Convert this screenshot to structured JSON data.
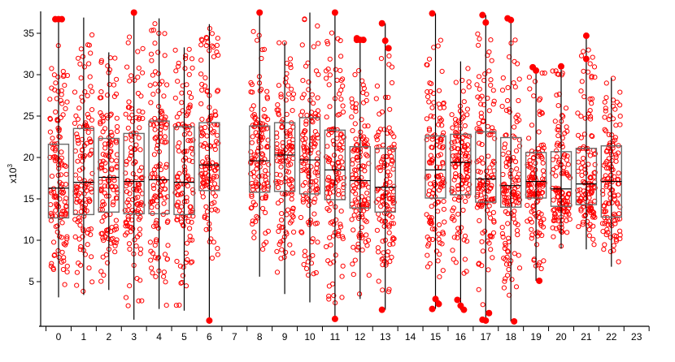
{
  "chart_data": {
    "type": "box",
    "title": "",
    "xlabel": "",
    "ylabel": "x10^3",
    "ylabel_base": "x10",
    "ylabel_exp": "3",
    "ylim": [
      0,
      37.5
    ],
    "yticks": [
      5,
      10,
      15,
      20,
      25,
      30,
      35
    ],
    "categories": [
      "0",
      "1",
      "2",
      "3",
      "4",
      "5",
      "6",
      "7",
      "8",
      "9",
      "10",
      "11",
      "12",
      "13",
      "14",
      "15",
      "16",
      "17",
      "18",
      "19",
      "20",
      "21",
      "22",
      "23"
    ],
    "grid": false,
    "legend": null,
    "point_color": "#ff0000",
    "box_color": "#6b6b6b",
    "whisker_color": "#000000",
    "boxes": [
      {
        "cat": "0",
        "whisker_low": 3.1,
        "q1": 12.7,
        "median": 16.3,
        "q3": 21.6,
        "whisker_high": 36.7,
        "outliers_high": [
          36.7,
          36.7,
          36.7
        ],
        "outliers_low": []
      },
      {
        "cat": "1",
        "whisker_low": 3.4,
        "q1": 13.1,
        "median": 17.0,
        "q3": 23.5,
        "whisker_high": 36.9,
        "outliers_high": [],
        "outliers_low": []
      },
      {
        "cat": "2",
        "whisker_low": 4.0,
        "q1": 13.4,
        "median": 17.6,
        "q3": 22.3,
        "whisker_high": 32.7,
        "outliers_high": [],
        "outliers_low": []
      },
      {
        "cat": "3",
        "whisker_low": 0.4,
        "q1": 13.2,
        "median": 17.1,
        "q3": 22.9,
        "whisker_high": 37.5,
        "outliers_high": [
          37.5
        ],
        "outliers_low": []
      },
      {
        "cat": "4",
        "whisker_low": 1.7,
        "q1": 13.2,
        "median": 17.3,
        "q3": 24.4,
        "whisker_high": 36.8,
        "outliers_high": [],
        "outliers_low": []
      },
      {
        "cat": "5",
        "whisker_low": 1.5,
        "q1": 13.1,
        "median": 17.0,
        "q3": 23.7,
        "whisker_high": 33.3,
        "outliers_high": [],
        "outliers_low": []
      },
      {
        "cat": "6",
        "whisker_low": 0.3,
        "q1": 16.0,
        "median": 19.1,
        "q3": 24.2,
        "whisker_high": 36.1,
        "outliers_high": [],
        "outliers_low": [
          0.3
        ]
      },
      {
        "cat": "7",
        "empty": true
      },
      {
        "cat": "8",
        "whisker_low": 5.6,
        "q1": 15.8,
        "median": 19.6,
        "q3": 23.8,
        "whisker_high": 37.5,
        "outliers_high": [
          37.5
        ],
        "outliers_low": []
      },
      {
        "cat": "9",
        "whisker_low": 3.5,
        "q1": 15.9,
        "median": 20.3,
        "q3": 24.2,
        "whisker_high": 33.9,
        "outliers_high": [],
        "outliers_low": []
      },
      {
        "cat": "10",
        "whisker_low": 2.5,
        "q1": 15.6,
        "median": 19.7,
        "q3": 24.8,
        "whisker_high": 37.5,
        "outliers_high": [],
        "outliers_low": []
      },
      {
        "cat": "11",
        "whisker_low": 0.5,
        "q1": 14.9,
        "median": 18.5,
        "q3": 23.3,
        "whisker_high": 37.5,
        "outliers_high": [
          37.5
        ],
        "outliers_low": [
          0.5
        ]
      },
      {
        "cat": "12",
        "whisker_low": 2.9,
        "q1": 13.9,
        "median": 17.2,
        "q3": 21.3,
        "whisker_high": 34.2,
        "outliers_high": [
          34.2,
          34.2,
          34.2,
          34.4
        ],
        "outliers_low": []
      },
      {
        "cat": "13",
        "whisker_low": 1.6,
        "q1": 13.4,
        "median": 16.4,
        "q3": 21.1,
        "whisker_high": 36.2,
        "outliers_high": [
          36.2,
          34.1,
          33.2
        ],
        "outliers_low": [
          1.6
        ]
      },
      {
        "cat": "14",
        "empty": true
      },
      {
        "cat": "15",
        "whisker_low": 1.7,
        "q1": 15.1,
        "median": 18.5,
        "q3": 22.6,
        "whisker_high": 37.4,
        "outliers_high": [
          37.4
        ],
        "outliers_low": [
          2.9,
          2.3,
          1.7
        ]
      },
      {
        "cat": "16",
        "whisker_low": 1.6,
        "q1": 15.5,
        "median": 19.4,
        "q3": 22.8,
        "whisker_high": 31.6,
        "outliers_high": [],
        "outliers_low": [
          2.8,
          2.1,
          1.6
        ]
      },
      {
        "cat": "17",
        "whisker_low": 0.3,
        "q1": 14.6,
        "median": 17.4,
        "q3": 23.1,
        "whisker_high": 37.2,
        "outliers_high": [
          37.2,
          36.3
        ],
        "outliers_low": [
          1.2,
          0.4,
          0.3
        ]
      },
      {
        "cat": "18",
        "whisker_low": 0.2,
        "q1": 14.0,
        "median": 16.6,
        "q3": 22.4,
        "whisker_high": 36.8,
        "outliers_high": [
          36.8,
          36.6
        ],
        "outliers_low": [
          0.2
        ]
      },
      {
        "cat": "19",
        "whisker_low": 5.1,
        "q1": 15.1,
        "median": 17.1,
        "q3": 20.6,
        "whisker_high": 30.7,
        "outliers_high": [
          30.9,
          30.5
        ],
        "outliers_low": [
          5.1
        ]
      },
      {
        "cat": "20",
        "whisker_low": 9.0,
        "q1": 14.1,
        "median": 16.2,
        "q3": 20.7,
        "whisker_high": 31.0,
        "outliers_high": [
          31.0
        ],
        "outliers_low": []
      },
      {
        "cat": "21",
        "whisker_low": 8.9,
        "q1": 14.3,
        "median": 16.8,
        "q3": 21.1,
        "whisker_high": 34.7,
        "outliers_high": [
          34.7,
          31.9
        ],
        "outliers_low": []
      },
      {
        "cat": "22",
        "whisker_low": 6.8,
        "q1": 12.8,
        "median": 17.1,
        "q3": 21.4,
        "whisker_high": 29.6,
        "outliers_high": [],
        "outliers_low": []
      },
      {
        "cat": "23",
        "empty": true
      }
    ]
  }
}
